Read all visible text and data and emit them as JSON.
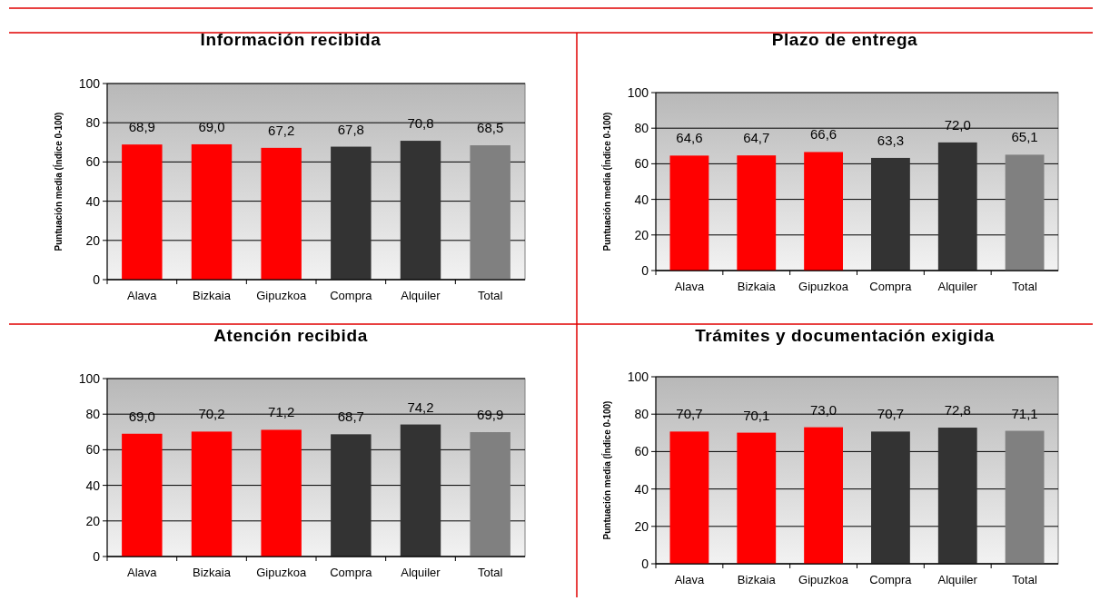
{
  "chart_data": [
    {
      "type": "bar",
      "title": "Información recibida",
      "ylabel": "Puntuación media (Índice 0-100)",
      "categories": [
        "Alava",
        "Bizkaia",
        "Gipuzkoa",
        "Compra",
        "Alquiler",
        "Total"
      ],
      "values": [
        68.9,
        69.0,
        67.2,
        67.8,
        70.8,
        68.5
      ],
      "value_labels": [
        "68,9",
        "69,0",
        "67,2",
        "67,8",
        "70,8",
        "68,5"
      ],
      "colors": [
        "#ff0000",
        "#ff0000",
        "#ff0000",
        "#333333",
        "#333333",
        "#808080"
      ],
      "ylim": [
        0,
        100
      ],
      "yticks": [
        0,
        20,
        40,
        60,
        80,
        100
      ],
      "grid": "y"
    },
    {
      "type": "bar",
      "title": "Plazo de entrega",
      "ylabel": "Puntuación media (Índice 0-100)",
      "categories": [
        "Alava",
        "Bizkaia",
        "Gipuzkoa",
        "Compra",
        "Alquiler",
        "Total"
      ],
      "values": [
        64.6,
        64.7,
        66.6,
        63.3,
        72.0,
        65.1
      ],
      "value_labels": [
        "64,6",
        "64,7",
        "66,6",
        "63,3",
        "72,0",
        "65,1"
      ],
      "colors": [
        "#ff0000",
        "#ff0000",
        "#ff0000",
        "#333333",
        "#333333",
        "#808080"
      ],
      "ylim": [
        0,
        100
      ],
      "yticks": [
        0,
        20,
        40,
        60,
        80,
        100
      ],
      "grid": "y"
    },
    {
      "type": "bar",
      "title": "Atención recibida",
      "categories": [
        "Alava",
        "Bizkaia",
        "Gipuzkoa",
        "Compra",
        "Alquiler",
        "Total"
      ],
      "values": [
        69.0,
        70.2,
        71.2,
        68.7,
        74.2,
        69.9
      ],
      "value_labels": [
        "69,0",
        "70,2",
        "71,2",
        "68,7",
        "74,2",
        "69,9"
      ],
      "colors": [
        "#ff0000",
        "#ff0000",
        "#ff0000",
        "#333333",
        "#333333",
        "#808080"
      ],
      "ylim": [
        0,
        100
      ],
      "yticks": [
        0,
        20,
        40,
        60,
        80,
        100
      ],
      "grid": "y"
    },
    {
      "type": "bar",
      "title": "Trámites y documentación exigida",
      "ylabel": "Puntuación media (Índice 0-100)",
      "categories": [
        "Alava",
        "Bizkaia",
        "Gipuzkoa",
        "Compra",
        "Alquiler",
        "Total"
      ],
      "values": [
        70.7,
        70.1,
        73.0,
        70.7,
        72.8,
        71.1
      ],
      "value_labels": [
        "70,7",
        "70,1",
        "73,0",
        "70,7",
        "72,8",
        "71,1"
      ],
      "colors": [
        "#ff0000",
        "#ff0000",
        "#ff0000",
        "#333333",
        "#333333",
        "#808080"
      ],
      "ylim": [
        0,
        100
      ],
      "yticks": [
        0,
        20,
        40,
        60,
        80,
        100
      ],
      "grid": "y"
    }
  ]
}
